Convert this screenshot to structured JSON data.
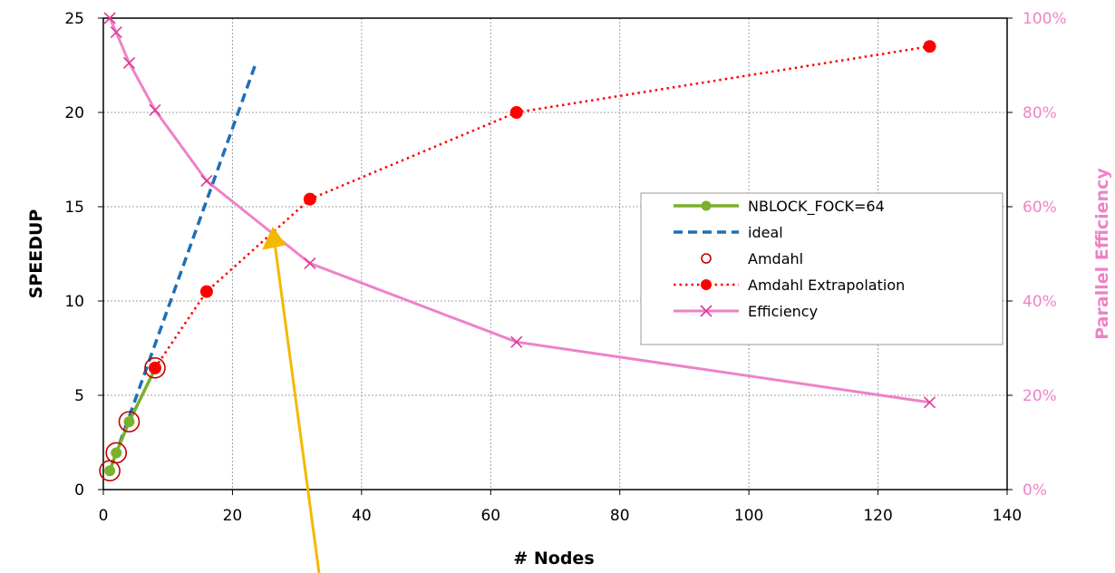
{
  "chart_data": {
    "type": "line",
    "title": "",
    "xlabel": "# Nodes",
    "ylabel": "SPEEDUP",
    "y2label": "Parallel Efficiency",
    "xlim": [
      0,
      140
    ],
    "ylim": [
      0,
      25
    ],
    "y2lim": [
      0,
      100
    ],
    "xticks": [
      "0",
      "20",
      "40",
      "60",
      "80",
      "100",
      "120",
      "140"
    ],
    "yticks": [
      "0",
      "5",
      "10",
      "15",
      "20",
      "25"
    ],
    "y2ticks": [
      "0%",
      "20%",
      "40%",
      "60%",
      "80%",
      "100%"
    ],
    "grid": true,
    "legend_position": "right",
    "series": [
      {
        "name": "NBLOCK_FOCK=64",
        "axis": "left",
        "color": "#7ab02b",
        "style": "solid-circle-markers",
        "x": [
          1,
          2,
          4,
          8
        ],
        "y": [
          1.0,
          1.95,
          3.6,
          6.4
        ]
      },
      {
        "name": "ideal",
        "axis": "left",
        "color": "#1f6fb4",
        "style": "dashed",
        "x": [
          1,
          23.5
        ],
        "y": [
          1,
          22.5
        ]
      },
      {
        "name": "Amdahl",
        "axis": "left",
        "color": "#c00000",
        "style": "open-circle",
        "x": [
          1,
          2,
          4,
          8
        ],
        "y": [
          1.0,
          1.95,
          3.6,
          6.45
        ]
      },
      {
        "name": "Amdahl Extrapolation",
        "axis": "left",
        "color": "#ff0000",
        "style": "dotted-filled-circle",
        "x": [
          8,
          16,
          32,
          64,
          128
        ],
        "y": [
          6.45,
          10.5,
          15.4,
          20.0,
          23.5
        ]
      },
      {
        "name": "Efficiency",
        "axis": "right",
        "color": "#ee82c8",
        "style": "solid-x-markers",
        "x": [
          1,
          2,
          4,
          8,
          16,
          32,
          64,
          128
        ],
        "y": [
          100,
          97,
          90.5,
          80.5,
          65.5,
          48,
          31.3,
          18.5
        ]
      }
    ],
    "annotations": [
      {
        "type": "arrow",
        "color": "#f5b800",
        "description": "yellow arrow pointing up toward crossover of curves"
      }
    ]
  }
}
